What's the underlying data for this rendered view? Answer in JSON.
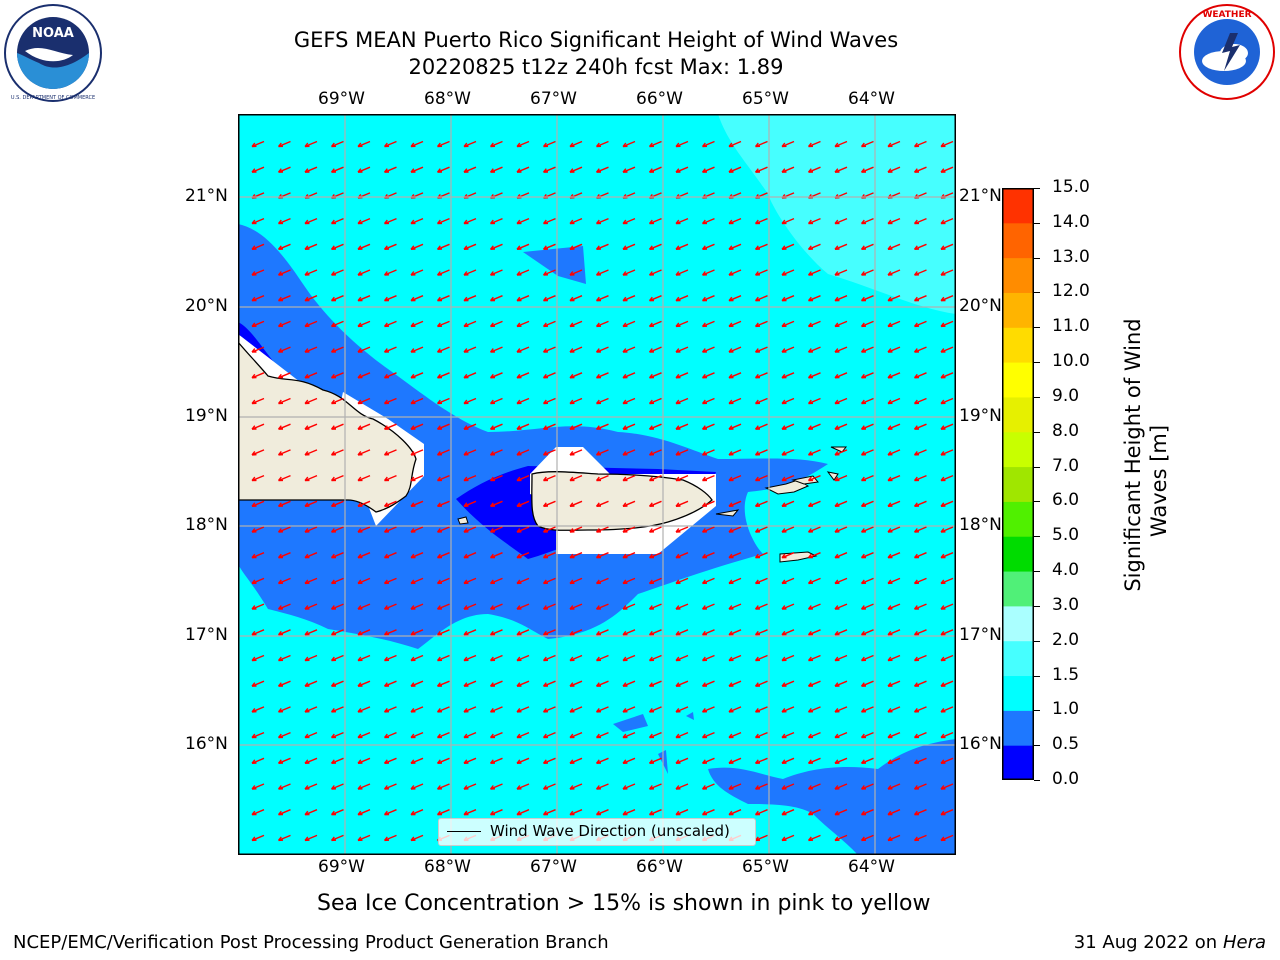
{
  "title": {
    "line1": "GEFS MEAN Puerto Rico Significant Height of Wind Waves",
    "line2": "20220825 t12z 240h fcst   Max: 1.89"
  },
  "logos": {
    "left": {
      "icon": "noaa-logo-icon",
      "text": "NOAA",
      "ring_text": "NATIONAL OCEANIC AND ATMOSPHERIC ADMINISTRATION · U.S. DEPARTMENT OF COMMERCE"
    },
    "right": {
      "icon": "nws-logo-icon",
      "ring_text": "NATIONAL WEATHER SERVICE"
    }
  },
  "map": {
    "lon_labels": [
      "69°W",
      "68°W",
      "67°W",
      "66°W",
      "65°W",
      "64°W"
    ],
    "lat_labels": [
      "21°N",
      "20°N",
      "19°N",
      "18°N",
      "17°N",
      "16°N"
    ],
    "ocean_color": "#00ffff",
    "land_color": "#f0ecdc",
    "arrow_color": "#ff0000",
    "grid_color": "#b0b0b0"
  },
  "legend": {
    "label": "Wind Wave Direction (unscaled)"
  },
  "colorbar": {
    "label_line1": "Significant Height of Wind",
    "label_line2": "Waves [m]",
    "ticks": [
      "0.0",
      "0.5",
      "1.0",
      "1.5",
      "2.0",
      "3.0",
      "4.0",
      "5.0",
      "6.0",
      "7.0",
      "8.0",
      "9.0",
      "10.0",
      "11.0",
      "12.0",
      "13.0",
      "14.0",
      "15.0"
    ],
    "colors": [
      "#0000ff",
      "#1e78ff",
      "#00ffff",
      "#46ffff",
      "#aaffff",
      "#50f078",
      "#00dc00",
      "#50f000",
      "#a0e600",
      "#c8ff00",
      "#e6f000",
      "#ffff00",
      "#ffdc00",
      "#ffb400",
      "#ff8c00",
      "#ff6400",
      "#ff3200",
      "#ff0000"
    ]
  },
  "subtitle": "Sea Ice Concentration > 15% is shown in pink to yellow",
  "footer": {
    "left": "NCEP/EMC/Verification Post Processing Product Generation Branch",
    "right_date": "31 Aug 2022 on",
    "right_host": "Hera"
  }
}
